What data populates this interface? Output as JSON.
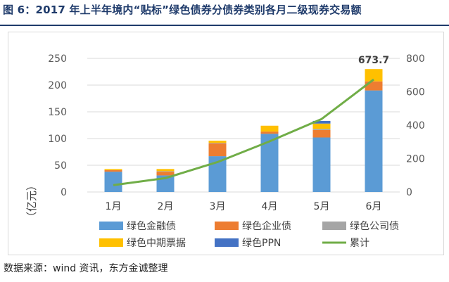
{
  "figure_title": "图 6：2017 年上半年境内“贴标”绿色债券分债券类别各月二级现券交易额",
  "source_note": "数据来源：wind 资讯，东方金诚整理",
  "chart_data": {
    "type": "bar",
    "stacked": true,
    "categories": [
      "1月",
      "2月",
      "3月",
      "4月",
      "5月",
      "6月"
    ],
    "series": [
      {
        "name": "绿色金融债",
        "color": "#5b9bd5",
        "values": [
          38,
          31,
          67,
          109,
          102,
          190
        ]
      },
      {
        "name": "绿色企业债",
        "color": "#ed7d31",
        "values": [
          3,
          7,
          24,
          4,
          14,
          17
        ]
      },
      {
        "name": "绿色公司债",
        "color": "#a5a5a5",
        "values": [
          0,
          1,
          1,
          0,
          2,
          0
        ]
      },
      {
        "name": "绿色中期票据",
        "color": "#ffc000",
        "values": [
          2,
          4,
          4,
          11,
          10,
          23
        ]
      },
      {
        "name": "绿色PPN",
        "color": "#4472c4",
        "values": [
          0,
          0,
          0,
          0,
          5,
          0
        ]
      }
    ],
    "line_series": {
      "name": "累计",
      "color": "#70ad47",
      "axis": "right",
      "values": [
        41,
        83,
        179,
        303,
        437,
        673.7
      ]
    },
    "data_labels": [
      {
        "category": "6月",
        "text": "673.7"
      }
    ],
    "y_left": {
      "label": "（亿元）",
      "min": 0,
      "max": 250,
      "ticks": [
        0,
        50,
        100,
        150,
        200,
        250
      ]
    },
    "y_right": {
      "min": 0,
      "max": 800,
      "ticks": [
        0,
        200,
        400,
        600,
        800
      ]
    },
    "legend_position": "bottom"
  }
}
